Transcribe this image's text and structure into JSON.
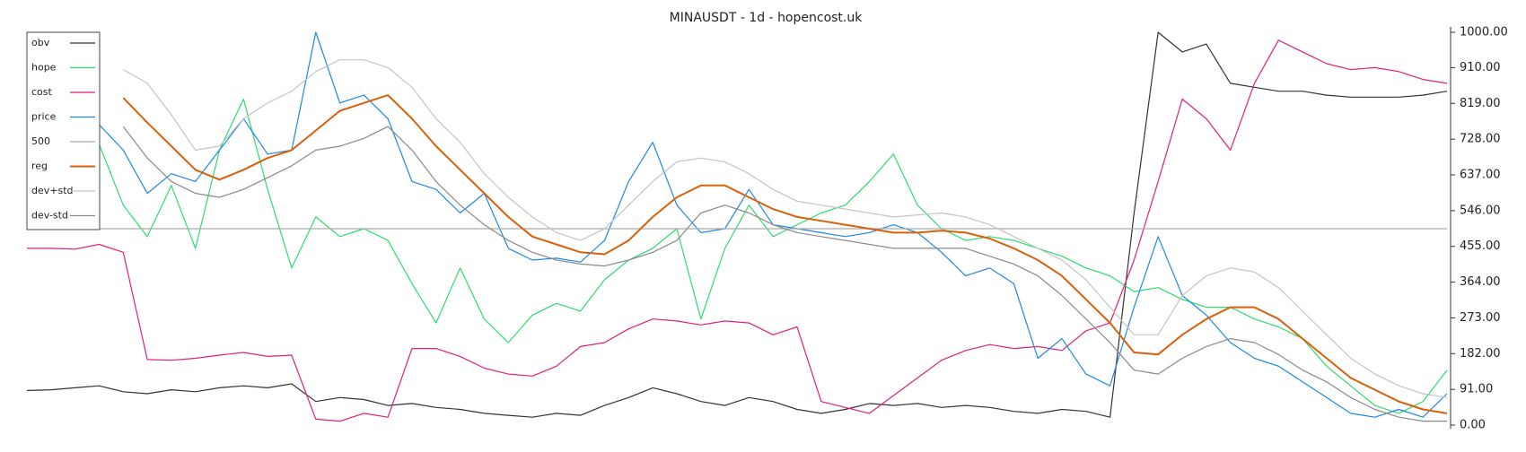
{
  "chart_data": {
    "type": "line",
    "title": "MINAUSDT - 1d - hopencost.uk",
    "ylim": [
      0,
      1000
    ],
    "yticks": [
      {
        "value": 0,
        "label": "0.00"
      },
      {
        "value": 91,
        "label": "91.00"
      },
      {
        "value": 182,
        "label": "182.00"
      },
      {
        "value": 273,
        "label": "273.00"
      },
      {
        "value": 364,
        "label": "364.00"
      },
      {
        "value": 455,
        "label": "455.00"
      },
      {
        "value": 546,
        "label": "546.00"
      },
      {
        "value": 637,
        "label": "637.00"
      },
      {
        "value": 728,
        "label": "728.00"
      },
      {
        "value": 819,
        "label": "819.00"
      },
      {
        "value": 910,
        "label": "910.00"
      },
      {
        "value": 1000,
        "label": "1000.00"
      }
    ],
    "legend": "top-left",
    "series": [
      {
        "name": "obv",
        "color": "#333333",
        "values": [
          88,
          90,
          95,
          100,
          85,
          80,
          90,
          85,
          95,
          100,
          95,
          105,
          60,
          70,
          65,
          50,
          55,
          45,
          40,
          30,
          25,
          20,
          30,
          25,
          50,
          70,
          95,
          80,
          60,
          50,
          70,
          60,
          40,
          30,
          40,
          55,
          50,
          55,
          45,
          50,
          45,
          35,
          30,
          40,
          35,
          20,
          540,
          1000,
          950,
          970,
          870,
          860,
          850,
          850,
          840,
          835,
          835,
          835,
          840,
          850
        ]
      },
      {
        "name": "hope",
        "color": "#2edc6c",
        "values": [
          null,
          null,
          null,
          715,
          560,
          480,
          610,
          450,
          700,
          830,
          600,
          400,
          530,
          480,
          500,
          470,
          360,
          260,
          400,
          270,
          210,
          280,
          310,
          290,
          370,
          420,
          450,
          500,
          270,
          450,
          560,
          480,
          510,
          540,
          560,
          620,
          690,
          560,
          500,
          470,
          480,
          470,
          450,
          430,
          400,
          380,
          340,
          350,
          320,
          300,
          300,
          270,
          250,
          220,
          150,
          100,
          50,
          30,
          60,
          140
        ]
      },
      {
        "name": "cost",
        "color": "#e0207a",
        "values": [
          450,
          450,
          448,
          460,
          440,
          167,
          165,
          170,
          178,
          185,
          175,
          178,
          15,
          10,
          30,
          20,
          195,
          195,
          175,
          145,
          130,
          125,
          150,
          200,
          210,
          245,
          270,
          265,
          255,
          265,
          260,
          230,
          250,
          60,
          45,
          30,
          75,
          120,
          165,
          190,
          205,
          195,
          200,
          190,
          240,
          260,
          420,
          620,
          830,
          780,
          700,
          870,
          980,
          950,
          920,
          905,
          910,
          900,
          880,
          870
        ]
      },
      {
        "name": "price",
        "color": "#1e88e5",
        "values": [
          null,
          null,
          null,
          765,
          700,
          590,
          640,
          620,
          700,
          780,
          690,
          700,
          1000,
          820,
          840,
          780,
          620,
          600,
          540,
          590,
          450,
          420,
          425,
          415,
          470,
          620,
          720,
          560,
          490,
          500,
          600,
          510,
          500,
          490,
          480,
          490,
          510,
          490,
          440,
          380,
          400,
          360,
          170,
          220,
          130,
          100,
          300,
          480,
          330,
          280,
          210,
          170,
          150,
          110,
          70,
          30,
          20,
          40,
          20,
          80
        ]
      },
      {
        "name": "500",
        "color": "#aaaaaa",
        "values": [
          500,
          500,
          500,
          500,
          500,
          500,
          500,
          500,
          500,
          500,
          500,
          500,
          500,
          500,
          500,
          500,
          500,
          500,
          500,
          500,
          500,
          500,
          500,
          500,
          500,
          500,
          500,
          500,
          500,
          500,
          500,
          500,
          500,
          500,
          500,
          500,
          500,
          500,
          500,
          500,
          500,
          500,
          500,
          500,
          500,
          500,
          500,
          500,
          500,
          500,
          500,
          500,
          500,
          500,
          500,
          500,
          500,
          500,
          500,
          500
        ]
      },
      {
        "name": "reg",
        "color": "#d9600a",
        "width": 2,
        "values": [
          null,
          null,
          null,
          null,
          833,
          770,
          710,
          650,
          625,
          650,
          680,
          700,
          750,
          800,
          820,
          840,
          780,
          710,
          650,
          590,
          530,
          480,
          460,
          440,
          435,
          470,
          530,
          580,
          610,
          610,
          580,
          550,
          530,
          520,
          510,
          500,
          490,
          490,
          495,
          490,
          475,
          450,
          420,
          380,
          320,
          260,
          185,
          180,
          230,
          270,
          300,
          300,
          270,
          220,
          170,
          120,
          90,
          60,
          40,
          30
        ]
      },
      {
        "name": "dev+std",
        "color": "#c4c4c4",
        "values": [
          null,
          null,
          null,
          null,
          905,
          870,
          790,
          700,
          710,
          780,
          820,
          850,
          900,
          930,
          930,
          910,
          860,
          780,
          720,
          640,
          580,
          530,
          490,
          470,
          500,
          560,
          620,
          670,
          680,
          670,
          640,
          600,
          570,
          560,
          550,
          540,
          530,
          535,
          540,
          530,
          510,
          480,
          450,
          420,
          370,
          300,
          230,
          230,
          330,
          380,
          400,
          390,
          350,
          290,
          230,
          170,
          130,
          100,
          80,
          70
        ]
      },
      {
        "name": "dev-std",
        "color": "#8a8a8a",
        "values": [
          null,
          null,
          null,
          null,
          760,
          680,
          620,
          590,
          580,
          600,
          630,
          660,
          700,
          710,
          730,
          760,
          700,
          620,
          560,
          510,
          470,
          440,
          420,
          410,
          405,
          420,
          440,
          470,
          540,
          560,
          540,
          510,
          490,
          480,
          470,
          460,
          450,
          450,
          450,
          450,
          430,
          410,
          380,
          330,
          270,
          210,
          140,
          130,
          170,
          200,
          220,
          210,
          180,
          140,
          110,
          70,
          40,
          20,
          10,
          10
        ]
      }
    ]
  }
}
